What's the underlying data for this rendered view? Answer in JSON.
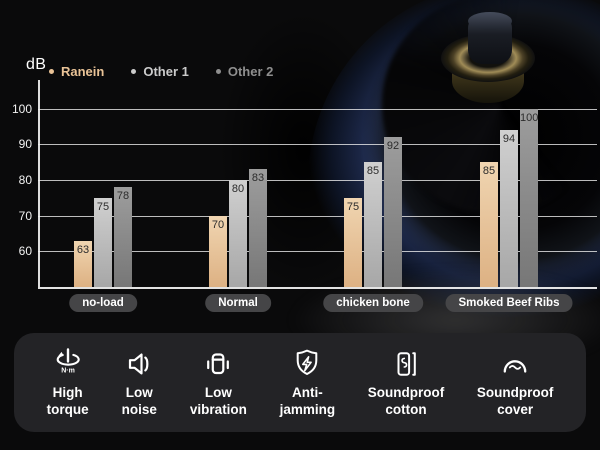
{
  "colors": {
    "background": "#0a0a0b",
    "panel_bg": "#232326",
    "grid_line": "#f0f0f0",
    "pill_bg": "#454547",
    "value_label_text": "#2c2c2c",
    "text_primary": "#ffffff"
  },
  "chart_data": {
    "type": "bar",
    "title": "",
    "ylabel": "dB",
    "xlabel": "",
    "categories": [
      "no-load",
      "Normal",
      "chicken bone",
      "Smoked Beef Ribs"
    ],
    "series": [
      {
        "name": "Ranein",
        "color": "#f0d5b1",
        "color_dark": "#ddb183",
        "text_color": "#e9c397",
        "values": [
          63,
          70,
          75,
          85
        ]
      },
      {
        "name": "Other 1",
        "color": "#d0d0d0",
        "color_dark": "#a7a7a7",
        "text_color": "#cbcbcb",
        "values": [
          75,
          80,
          85,
          94
        ]
      },
      {
        "name": "Other 2",
        "color": "#9d9d9d",
        "color_dark": "#777777",
        "text_color": "#8f8f8f",
        "values": [
          78,
          83,
          92,
          100
        ]
      }
    ],
    "yticks": [
      60,
      70,
      80,
      90,
      100
    ],
    "ylim": [
      50,
      108
    ],
    "grid": true,
    "legend_position": "top-left",
    "value_labels": "inside-top"
  },
  "features": {
    "items": [
      {
        "icon": "torque-icon",
        "unit": "N·m",
        "label": "High torque",
        "lines": [
          "High",
          "torque"
        ]
      },
      {
        "icon": "speaker-icon",
        "label": "Low noise",
        "lines": [
          "Low",
          "noise"
        ]
      },
      {
        "icon": "vibration-icon",
        "label": "Low vibration",
        "lines": [
          "Low",
          "vibration"
        ]
      },
      {
        "icon": "shield-bolt-icon",
        "label": "Anti-jamming",
        "lines": [
          "Anti-",
          "jamming"
        ]
      },
      {
        "icon": "soundproof-cotton-icon",
        "label": "Soundproof cotton",
        "lines": [
          "Soundproof",
          "cotton"
        ]
      },
      {
        "icon": "soundproof-cover-icon",
        "label": "Soundproof cover",
        "lines": [
          "Soundproof",
          "cover"
        ]
      }
    ]
  }
}
